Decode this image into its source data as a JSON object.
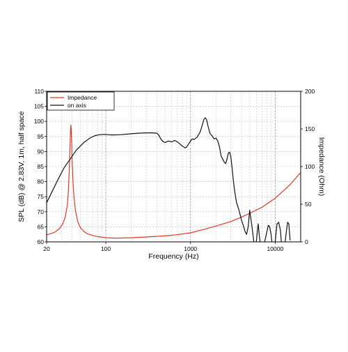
{
  "chart_data": {
    "type": "line",
    "title": "",
    "xlabel": "Frequency (Hz)",
    "ylabel": "SPL (dB) @ 2.83V, 1m, half space",
    "y2label": "Impedance (Ohm)",
    "x_scale": "log",
    "xlim": [
      20,
      20000
    ],
    "ylim": [
      60,
      110
    ],
    "y2lim": [
      0,
      200
    ],
    "x_ticks": [
      20,
      100,
      1000,
      10000
    ],
    "x_tick_labels": [
      "20",
      "100",
      "1000",
      "10000"
    ],
    "y_ticks": [
      60,
      65,
      70,
      75,
      80,
      85,
      90,
      95,
      100,
      105,
      110
    ],
    "y_tick_labels": [
      "60",
      "65",
      "70",
      "75",
      "80",
      "85",
      "90",
      "95",
      "100",
      "105",
      "110"
    ],
    "y2_ticks": [
      0,
      50,
      100,
      150,
      200
    ],
    "y2_tick_labels": [
      "0",
      "50",
      "100",
      "150",
      "200"
    ],
    "grid": true,
    "legend_position": "top-left",
    "series": [
      {
        "name": "Impedance",
        "axis": "right",
        "color": "#d9392b",
        "x": [
          20,
          22,
          25,
          28,
          31,
          33,
          35,
          36,
          37,
          38,
          38.6,
          39,
          39.5,
          40,
          41,
          42,
          44,
          47,
          50,
          55,
          60,
          70,
          80,
          100,
          130,
          200,
          300,
          500,
          700,
          1000,
          1500,
          2000,
          3000,
          4000,
          5000,
          7000,
          10000,
          15000,
          20000
        ],
        "values": [
          9.5,
          10.5,
          13,
          17,
          24,
          32,
          48,
          65,
          95,
          135,
          155,
          150,
          132,
          110,
          80,
          60,
          40,
          26,
          19,
          14,
          11,
          8.5,
          7,
          5.5,
          5,
          5.5,
          6.5,
          8,
          9.5,
          12,
          17,
          21,
          27,
          33,
          38,
          46,
          58,
          76,
          92
        ]
      },
      {
        "name": "on axis",
        "axis": "left",
        "color": "#111111",
        "x": [
          20,
          23,
          27,
          32,
          38,
          45,
          55,
          65,
          75,
          85,
          95,
          105,
          120,
          150,
          200,
          250,
          300,
          350,
          400,
          420,
          450,
          480,
          500,
          550,
          600,
          650,
          700,
          750,
          800,
          870,
          900,
          950,
          1000,
          1050,
          1100,
          1200,
          1300,
          1350,
          1400,
          1450,
          1500,
          1550,
          1600,
          1700,
          1800,
          1900,
          2000,
          2100,
          2200,
          2300,
          2400,
          2500,
          2600,
          2700,
          2800,
          2900,
          3000,
          3100,
          3200,
          3300,
          3400,
          3500,
          3700,
          3900,
          4000,
          4200,
          4400,
          4600,
          4800,
          5000,
          5300,
          5600,
          5900,
          6100,
          6300,
          6500,
          6800,
          7000,
          7500,
          8000,
          8300,
          8600,
          9000,
          9300,
          9600,
          10000,
          10500,
          11000,
          11500,
          12000,
          12500,
          13000,
          13500,
          14000,
          14500,
          15000
        ],
        "values": [
          73,
          76.5,
          80.5,
          84.5,
          87.5,
          90.5,
          93,
          94.5,
          95.3,
          95.6,
          95.7,
          95.6,
          95.5,
          95.6,
          95.9,
          96.1,
          96.2,
          96.2,
          96.1,
          95.5,
          94,
          93.2,
          93,
          93.5,
          93.2,
          93.7,
          93.2,
          92.5,
          91.8,
          91.2,
          91.5,
          92.5,
          93.5,
          94.2,
          94,
          94.8,
          96.5,
          98,
          99.5,
          100.8,
          101.2,
          100.5,
          98.8,
          96,
          95.2,
          94.2,
          94.5,
          93.5,
          91.5,
          88.5,
          87.5,
          86.5,
          86,
          87.5,
          89.5,
          89.8,
          88,
          84.5,
          80.5,
          77.5,
          75,
          73,
          71,
          68.5,
          67.2,
          65.5,
          63.5,
          62.5,
          65,
          70.5,
          65.5,
          60,
          58,
          62.5,
          66,
          62,
          58,
          58,
          60,
          63.5,
          65.5,
          65,
          62,
          58,
          57,
          60,
          66,
          66.5,
          64,
          58,
          57,
          59,
          63,
          66.5,
          66,
          60.5
        ]
      }
    ]
  }
}
